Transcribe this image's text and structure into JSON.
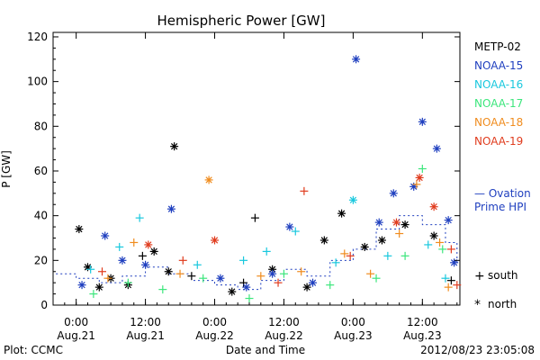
{
  "chart_data": {
    "type": "scatter",
    "title": "Hemispheric Power [GW]",
    "xlabel": "Date and Time",
    "ylabel": "P [GW]",
    "xlim": [
      "2012-08-20T20:00",
      "2012-08-23T18:30"
    ],
    "ylim": [
      0,
      122
    ],
    "yticks": [
      0,
      20,
      40,
      60,
      80,
      100,
      120
    ],
    "xticks": [
      {
        "t": "2012-08-21T00:00",
        "time": "0:00",
        "date": "Aug.21"
      },
      {
        "t": "2012-08-21T12:00",
        "time": "12:00",
        "date": "Aug.21"
      },
      {
        "t": "2012-08-22T00:00",
        "time": "0:00",
        "date": "Aug.22"
      },
      {
        "t": "2012-08-22T12:00",
        "time": "12:00",
        "date": "Aug.22"
      },
      {
        "t": "2012-08-23T00:00",
        "time": "0:00",
        "date": "Aug.23"
      },
      {
        "t": "2012-08-23T12:00",
        "time": "12:00",
        "date": "Aug.23"
      }
    ],
    "legend_placement": "right",
    "series": [
      {
        "name": "METP-02",
        "color": "#000000",
        "points": [
          {
            "x": "2012-08-21T00:30",
            "y": 34,
            "m": "north"
          },
          {
            "x": "2012-08-21T02:00",
            "y": 17,
            "m": "north"
          },
          {
            "x": "2012-08-21T04:00",
            "y": 8,
            "m": "north"
          },
          {
            "x": "2012-08-21T06:00",
            "y": 12,
            "m": "north"
          },
          {
            "x": "2012-08-21T09:00",
            "y": 9,
            "m": "north"
          },
          {
            "x": "2012-08-21T11:30",
            "y": 22,
            "m": "south"
          },
          {
            "x": "2012-08-21T13:30",
            "y": 24,
            "m": "north"
          },
          {
            "x": "2012-08-21T16:00",
            "y": 15,
            "m": "north"
          },
          {
            "x": "2012-08-21T17:00",
            "y": 71,
            "m": "north"
          },
          {
            "x": "2012-08-21T20:00",
            "y": 13,
            "m": "south"
          },
          {
            "x": "2012-08-22T03:00",
            "y": 6,
            "m": "north"
          },
          {
            "x": "2012-08-22T05:00",
            "y": 10,
            "m": "south"
          },
          {
            "x": "2012-08-22T07:00",
            "y": 39,
            "m": "south"
          },
          {
            "x": "2012-08-22T10:00",
            "y": 16,
            "m": "north"
          },
          {
            "x": "2012-08-22T16:00",
            "y": 8,
            "m": "north"
          },
          {
            "x": "2012-08-22T19:00",
            "y": 29,
            "m": "north"
          },
          {
            "x": "2012-08-22T22:00",
            "y": 41,
            "m": "north"
          },
          {
            "x": "2012-08-23T02:00",
            "y": 26,
            "m": "north"
          },
          {
            "x": "2012-08-23T05:00",
            "y": 29,
            "m": "north"
          },
          {
            "x": "2012-08-23T09:00",
            "y": 36,
            "m": "north"
          },
          {
            "x": "2012-08-23T14:00",
            "y": 31,
            "m": "north"
          },
          {
            "x": "2012-08-23T17:00",
            "y": 11,
            "m": "south"
          }
        ]
      },
      {
        "name": "NOAA-15",
        "color": "#1f3fbf",
        "points": [
          {
            "x": "2012-08-21T01:00",
            "y": 9,
            "m": "north"
          },
          {
            "x": "2012-08-21T05:00",
            "y": 31,
            "m": "north"
          },
          {
            "x": "2012-08-21T08:00",
            "y": 20,
            "m": "north"
          },
          {
            "x": "2012-08-21T12:00",
            "y": 18,
            "m": "north"
          },
          {
            "x": "2012-08-21T16:30",
            "y": 43,
            "m": "north"
          },
          {
            "x": "2012-08-22T01:00",
            "y": 12,
            "m": "north"
          },
          {
            "x": "2012-08-22T05:30",
            "y": 8,
            "m": "north"
          },
          {
            "x": "2012-08-22T10:00",
            "y": 14,
            "m": "north"
          },
          {
            "x": "2012-08-22T13:00",
            "y": 35,
            "m": "north"
          },
          {
            "x": "2012-08-22T17:00",
            "y": 10,
            "m": "north"
          },
          {
            "x": "2012-08-23T00:30",
            "y": 110,
            "m": "north"
          },
          {
            "x": "2012-08-23T04:30",
            "y": 37,
            "m": "north"
          },
          {
            "x": "2012-08-23T07:00",
            "y": 50,
            "m": "north"
          },
          {
            "x": "2012-08-23T10:30",
            "y": 53,
            "m": "north"
          },
          {
            "x": "2012-08-23T12:00",
            "y": 82,
            "m": "north"
          },
          {
            "x": "2012-08-23T14:30",
            "y": 70,
            "m": "north"
          },
          {
            "x": "2012-08-23T16:30",
            "y": 38,
            "m": "north"
          },
          {
            "x": "2012-08-23T17:30",
            "y": 19,
            "m": "north"
          }
        ]
      },
      {
        "name": "NOAA-16",
        "color": "#19c8de",
        "points": [
          {
            "x": "2012-08-21T02:30",
            "y": 16,
            "m": "south"
          },
          {
            "x": "2012-08-21T07:30",
            "y": 26,
            "m": "south"
          },
          {
            "x": "2012-08-21T11:00",
            "y": 39,
            "m": "south"
          },
          {
            "x": "2012-08-21T21:00",
            "y": 18,
            "m": "south"
          },
          {
            "x": "2012-08-22T05:00",
            "y": 20,
            "m": "south"
          },
          {
            "x": "2012-08-22T09:00",
            "y": 24,
            "m": "south"
          },
          {
            "x": "2012-08-22T14:00",
            "y": 33,
            "m": "south"
          },
          {
            "x": "2012-08-22T21:00",
            "y": 19,
            "m": "south"
          },
          {
            "x": "2012-08-23T00:00",
            "y": 47,
            "m": "north"
          },
          {
            "x": "2012-08-23T06:00",
            "y": 22,
            "m": "south"
          },
          {
            "x": "2012-08-23T13:00",
            "y": 27,
            "m": "south"
          },
          {
            "x": "2012-08-23T16:00",
            "y": 12,
            "m": "south"
          }
        ]
      },
      {
        "name": "NOAA-17",
        "color": "#3ce67c",
        "points": [
          {
            "x": "2012-08-21T03:00",
            "y": 5,
            "m": "south"
          },
          {
            "x": "2012-08-21T09:00",
            "y": 10,
            "m": "south"
          },
          {
            "x": "2012-08-21T15:00",
            "y": 7,
            "m": "south"
          },
          {
            "x": "2012-08-21T22:00",
            "y": 12,
            "m": "south"
          },
          {
            "x": "2012-08-22T06:00",
            "y": 3,
            "m": "south"
          },
          {
            "x": "2012-08-22T12:00",
            "y": 14,
            "m": "south"
          },
          {
            "x": "2012-08-22T20:00",
            "y": 9,
            "m": "south"
          },
          {
            "x": "2012-08-23T04:00",
            "y": 12,
            "m": "south"
          },
          {
            "x": "2012-08-23T09:00",
            "y": 22,
            "m": "south"
          },
          {
            "x": "2012-08-23T12:00",
            "y": 61,
            "m": "south"
          },
          {
            "x": "2012-08-23T15:30",
            "y": 25,
            "m": "south"
          }
        ]
      },
      {
        "name": "NOAA-18",
        "color": "#f08c1e",
        "points": [
          {
            "x": "2012-08-21T05:30",
            "y": 12,
            "m": "south"
          },
          {
            "x": "2012-08-21T10:00",
            "y": 28,
            "m": "south"
          },
          {
            "x": "2012-08-21T18:00",
            "y": 14,
            "m": "south"
          },
          {
            "x": "2012-08-21T23:00",
            "y": 56,
            "m": "north"
          },
          {
            "x": "2012-08-22T08:00",
            "y": 13,
            "m": "south"
          },
          {
            "x": "2012-08-22T15:00",
            "y": 15,
            "m": "south"
          },
          {
            "x": "2012-08-22T22:30",
            "y": 23,
            "m": "south"
          },
          {
            "x": "2012-08-23T03:00",
            "y": 14,
            "m": "south"
          },
          {
            "x": "2012-08-23T08:00",
            "y": 32,
            "m": "south"
          },
          {
            "x": "2012-08-23T11:00",
            "y": 54,
            "m": "south"
          },
          {
            "x": "2012-08-23T15:00",
            "y": 28,
            "m": "south"
          },
          {
            "x": "2012-08-23T16:30",
            "y": 8,
            "m": "south"
          }
        ]
      },
      {
        "name": "NOAA-19",
        "color": "#e03c1e",
        "points": [
          {
            "x": "2012-08-21T04:30",
            "y": 15,
            "m": "south"
          },
          {
            "x": "2012-08-21T12:30",
            "y": 27,
            "m": "north"
          },
          {
            "x": "2012-08-21T18:30",
            "y": 20,
            "m": "south"
          },
          {
            "x": "2012-08-22T00:00",
            "y": 29,
            "m": "north"
          },
          {
            "x": "2012-08-22T11:00",
            "y": 10,
            "m": "south"
          },
          {
            "x": "2012-08-22T15:30",
            "y": 51,
            "m": "south"
          },
          {
            "x": "2012-08-22T23:30",
            "y": 22,
            "m": "south"
          },
          {
            "x": "2012-08-23T07:30",
            "y": 37,
            "m": "north"
          },
          {
            "x": "2012-08-23T11:30",
            "y": 57,
            "m": "north"
          },
          {
            "x": "2012-08-23T14:00",
            "y": 44,
            "m": "north"
          },
          {
            "x": "2012-08-23T17:00",
            "y": 25,
            "m": "south"
          },
          {
            "x": "2012-08-23T18:00",
            "y": 9,
            "m": "south"
          }
        ]
      }
    ],
    "ovation": {
      "label_line1": "— Ovation",
      "label_line2": "Prime HPI",
      "color": "#1f3fbf",
      "points": [
        {
          "x": "2012-08-20T20:30",
          "y": 14
        },
        {
          "x": "2012-08-21T00:00",
          "y": 12
        },
        {
          "x": "2012-08-21T04:00",
          "y": 10
        },
        {
          "x": "2012-08-21T08:00",
          "y": 13
        },
        {
          "x": "2012-08-21T12:00",
          "y": 17
        },
        {
          "x": "2012-08-21T16:00",
          "y": 14
        },
        {
          "x": "2012-08-21T20:00",
          "y": 11
        },
        {
          "x": "2012-08-22T00:00",
          "y": 9
        },
        {
          "x": "2012-08-22T04:00",
          "y": 7
        },
        {
          "x": "2012-08-22T08:00",
          "y": 11
        },
        {
          "x": "2012-08-22T12:00",
          "y": 16
        },
        {
          "x": "2012-08-22T16:00",
          "y": 13
        },
        {
          "x": "2012-08-22T20:00",
          "y": 20
        },
        {
          "x": "2012-08-23T00:00",
          "y": 25
        },
        {
          "x": "2012-08-23T04:00",
          "y": 34
        },
        {
          "x": "2012-08-23T08:00",
          "y": 40
        },
        {
          "x": "2012-08-23T12:00",
          "y": 36
        },
        {
          "x": "2012-08-23T16:00",
          "y": 28
        },
        {
          "x": "2012-08-23T18:00",
          "y": 18
        }
      ]
    },
    "marker_legend": {
      "south": "south",
      "north": "north",
      "south_symbol": "+",
      "north_symbol": "*"
    },
    "footer_left": "Plot: CCMC",
    "footer_right": "2012/08/23 23:05:08"
  }
}
